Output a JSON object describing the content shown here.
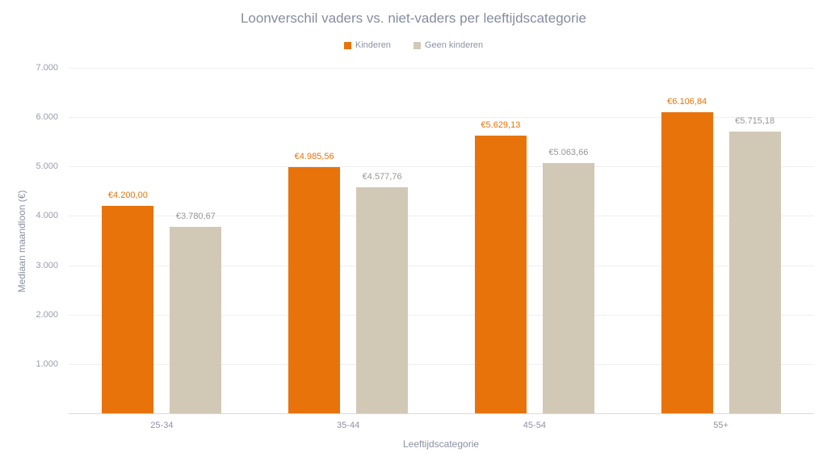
{
  "title": "Loonverschil vaders vs. niet-vaders per leeftijdscategorie",
  "colors": {
    "background": "#FFFFFF",
    "title_text": "#878CA0",
    "axis_title_text": "#8B90A3",
    "tick_text": "#989DAE",
    "category_text": "#8E93A6",
    "gridline": "#EFEFEF",
    "axis_line": "#DADADA",
    "series_kinderen": "#E8730B",
    "series_geen_kinderen": "#D1C8B6",
    "value_label_kinderen": "#E8730B",
    "value_label_geen_kinderen": "#979797"
  },
  "chart_data": {
    "type": "bar",
    "title": "Loonverschil vaders vs. niet-vaders per leeftijdscategorie",
    "categories": [
      "25-34",
      "35-44",
      "45-54",
      "55+"
    ],
    "series": [
      {
        "name": "Kinderen",
        "color": "#E8730B",
        "label_color": "#E8730B",
        "values": [
          4200.0,
          4985.56,
          5629.13,
          6106.84
        ],
        "labels": [
          "€4.200,00",
          "€4.985,56",
          "€5.629,13",
          "€6.106,84"
        ]
      },
      {
        "name": "Geen kinderen",
        "color": "#D1C8B6",
        "label_color": "#979797",
        "values": [
          3780.67,
          4577.76,
          5063.66,
          5715.18
        ],
        "labels": [
          "€3.780,67",
          "€4.577,76",
          "€5.063,66",
          "€5.715,18"
        ]
      }
    ],
    "xlabel": "Leeftijdscategorie",
    "ylabel": "Mediaan maandloon (€)",
    "ylim": [
      0,
      7000
    ],
    "yticks": [
      {
        "value": 1000,
        "label": "1.000"
      },
      {
        "value": 2000,
        "label": "2.000"
      },
      {
        "value": 3000,
        "label": "3.000"
      },
      {
        "value": 4000,
        "label": "4.000"
      },
      {
        "value": 5000,
        "label": "5.000"
      },
      {
        "value": 6000,
        "label": "6.000"
      },
      {
        "value": 7000,
        "label": "7.000"
      }
    ],
    "grid": true,
    "legend_position": "top"
  }
}
